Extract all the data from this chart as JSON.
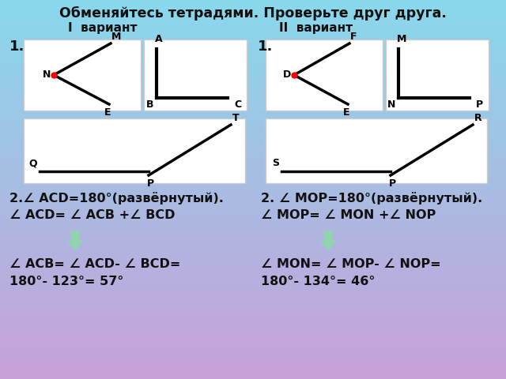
{
  "title": "Обменяйтесь тетрадями. Проверьте друг друга.",
  "variant1": "I  вариант",
  "variant2": "II  вариант",
  "lines_v1": [
    "2.∠ ACD=180°(развёрнутый).",
    "∠ ACD= ∠ ACB +∠ BCD",
    "∠ ACB= ∠ ACD- ∠ BCD=",
    "180°- 123°= 57°"
  ],
  "lines_v2": [
    "2. ∠ MOP=180°(развёрнутый).",
    "∠ MOP= ∠ MON +∠ NOP",
    "∠ MON= ∠ MOP- ∠ NOP=",
    "180°- 134°= 46°"
  ],
  "arrow_color": "#90d4b0",
  "box_edge_color": "#cccccc",
  "text_color": "#111111"
}
